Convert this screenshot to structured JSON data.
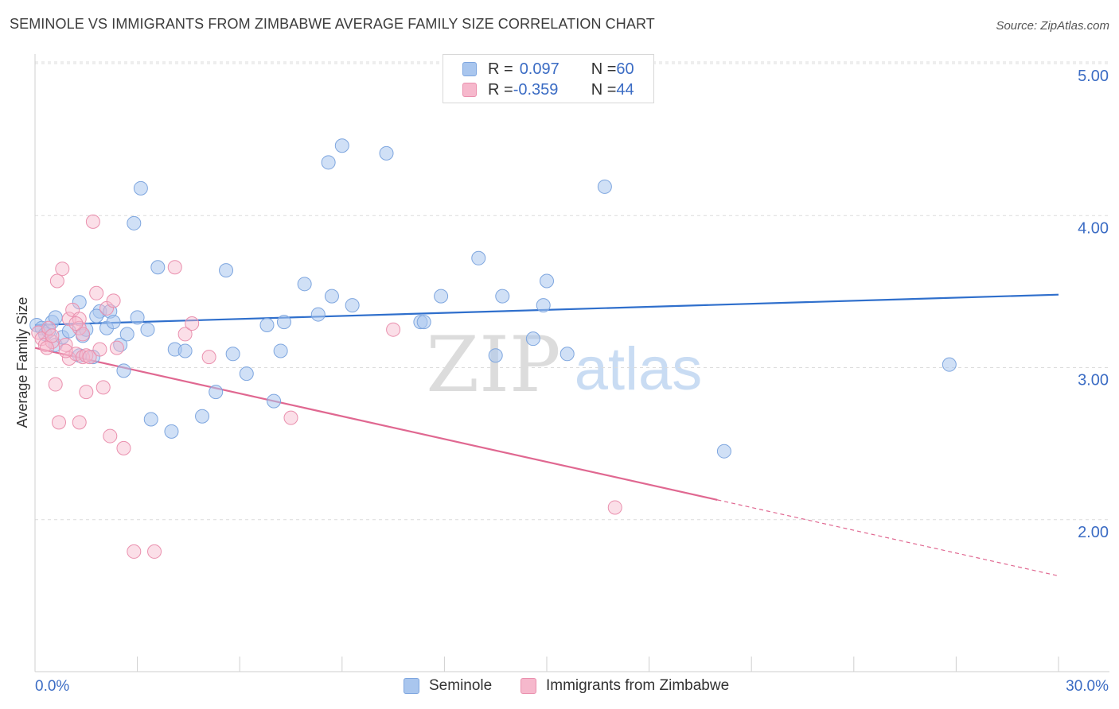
{
  "header": {
    "title": "SEMINOLE VS IMMIGRANTS FROM ZIMBABWE AVERAGE FAMILY SIZE CORRELATION CHART",
    "source": "Source: ZipAtlas.com"
  },
  "watermark": {
    "zip": "ZIP",
    "atlas": "atlas"
  },
  "legend": {
    "rows": [
      {
        "r_label": "R = ",
        "r_value": "0.097",
        "n_label": "N = ",
        "n_value": "60",
        "color": "#a9c6ee"
      },
      {
        "r_label": "R = ",
        "r_value": "-0.359",
        "n_label": "N = ",
        "n_value": "44",
        "color": "#f6b8cc"
      }
    ]
  },
  "colors": {
    "blue_fill": "#a9c6ee",
    "blue_stroke": "#7ea6df",
    "blue_line": "#2f6fcc",
    "pink_fill": "#f6b8cc",
    "pink_stroke": "#ea90ae",
    "pink_line": "#e06891",
    "axis_label_color": "#3b6cc4"
  },
  "chart_data": {
    "type": "scatter",
    "title": "SEMINOLE VS IMMIGRANTS FROM ZIMBABWE AVERAGE FAMILY SIZE CORRELATION CHART",
    "xlabel": "",
    "ylabel": "Average Family Size",
    "xlim": [
      0,
      30
    ],
    "ylim": [
      1.0,
      5.0
    ],
    "x_tick_labels": [
      "0.0%",
      "30.0%"
    ],
    "y_ticks": [
      2.0,
      3.0,
      4.0,
      5.0
    ],
    "y_tick_labels": [
      "2.00",
      "3.00",
      "4.00",
      "5.00"
    ],
    "grid": "horizontal dashed",
    "legend_position": "top-center",
    "series": [
      {
        "name": "Seminole",
        "color": "#a9c6ee",
        "points": [
          [
            0.05,
            3.28
          ],
          [
            0.2,
            3.26
          ],
          [
            0.3,
            3.22
          ],
          [
            0.4,
            3.24
          ],
          [
            0.5,
            3.3
          ],
          [
            0.6,
            3.15
          ],
          [
            0.8,
            3.2
          ],
          [
            1.0,
            3.24
          ],
          [
            1.3,
            3.08
          ],
          [
            1.3,
            3.43
          ],
          [
            1.4,
            3.21
          ],
          [
            1.5,
            3.25
          ],
          [
            1.7,
            3.07
          ],
          [
            1.9,
            3.37
          ],
          [
            2.1,
            3.26
          ],
          [
            2.2,
            3.37
          ],
          [
            2.3,
            3.3
          ],
          [
            2.5,
            3.15
          ],
          [
            2.6,
            2.98
          ],
          [
            2.7,
            3.22
          ],
          [
            2.9,
            3.95
          ],
          [
            3.0,
            3.33
          ],
          [
            3.1,
            4.18
          ],
          [
            3.3,
            3.25
          ],
          [
            3.4,
            2.66
          ],
          [
            3.6,
            3.66
          ],
          [
            4.0,
            2.58
          ],
          [
            4.1,
            3.12
          ],
          [
            4.4,
            3.11
          ],
          [
            4.9,
            2.68
          ],
          [
            5.3,
            2.84
          ],
          [
            5.6,
            3.64
          ],
          [
            5.8,
            3.09
          ],
          [
            6.2,
            2.96
          ],
          [
            6.8,
            3.28
          ],
          [
            7.0,
            2.78
          ],
          [
            7.2,
            3.11
          ],
          [
            7.3,
            3.3
          ],
          [
            7.9,
            3.55
          ],
          [
            8.3,
            3.35
          ],
          [
            8.6,
            4.35
          ],
          [
            8.7,
            3.47
          ],
          [
            9.0,
            4.46
          ],
          [
            9.3,
            3.41
          ],
          [
            10.3,
            4.41
          ],
          [
            11.3,
            3.3
          ],
          [
            11.4,
            3.3
          ],
          [
            11.9,
            3.47
          ],
          [
            13.0,
            3.72
          ],
          [
            13.5,
            3.08
          ],
          [
            13.7,
            3.47
          ],
          [
            14.6,
            3.19
          ],
          [
            14.9,
            3.41
          ],
          [
            15.0,
            3.57
          ],
          [
            15.6,
            3.09
          ],
          [
            16.7,
            4.19
          ],
          [
            20.2,
            2.45
          ],
          [
            26.8,
            3.02
          ],
          [
            0.6,
            3.33
          ],
          [
            1.8,
            3.34
          ]
        ],
        "trendline": {
          "x": [
            0,
            30
          ],
          "y": [
            3.28,
            3.48
          ]
        }
      },
      {
        "name": "Immigrants from Zimbabwe",
        "color": "#f6b8cc",
        "points": [
          [
            0.1,
            3.23
          ],
          [
            0.2,
            3.19
          ],
          [
            0.3,
            3.15
          ],
          [
            0.4,
            3.26
          ],
          [
            0.5,
            3.17
          ],
          [
            0.6,
            2.89
          ],
          [
            0.65,
            3.57
          ],
          [
            0.7,
            2.64
          ],
          [
            0.8,
            3.65
          ],
          [
            0.9,
            3.15
          ],
          [
            1.0,
            3.32
          ],
          [
            1.0,
            3.06
          ],
          [
            1.1,
            3.38
          ],
          [
            1.2,
            3.09
          ],
          [
            1.3,
            3.32
          ],
          [
            1.3,
            3.26
          ],
          [
            1.4,
            3.22
          ],
          [
            1.3,
            2.64
          ],
          [
            1.4,
            3.07
          ],
          [
            1.5,
            3.08
          ],
          [
            1.5,
            2.84
          ],
          [
            1.6,
            3.07
          ],
          [
            1.7,
            3.96
          ],
          [
            1.8,
            3.49
          ],
          [
            1.9,
            3.12
          ],
          [
            2.0,
            2.87
          ],
          [
            2.1,
            3.39
          ],
          [
            2.2,
            2.55
          ],
          [
            2.3,
            3.44
          ],
          [
            2.4,
            3.13
          ],
          [
            2.6,
            2.47
          ],
          [
            2.9,
            1.79
          ],
          [
            3.5,
            1.79
          ],
          [
            4.1,
            3.66
          ],
          [
            4.4,
            3.22
          ],
          [
            4.6,
            3.29
          ],
          [
            5.1,
            3.07
          ],
          [
            7.5,
            2.67
          ],
          [
            10.5,
            3.25
          ],
          [
            17.0,
            2.08
          ],
          [
            0.35,
            3.13
          ],
          [
            0.5,
            3.21
          ],
          [
            0.9,
            3.11
          ],
          [
            1.2,
            3.29
          ]
        ],
        "trendline": {
          "x": [
            0,
            20
          ],
          "y": [
            3.13,
            2.13
          ]
        },
        "trendline_extension": {
          "x": [
            20,
            30
          ],
          "y": [
            2.13,
            1.63
          ]
        }
      }
    ]
  }
}
